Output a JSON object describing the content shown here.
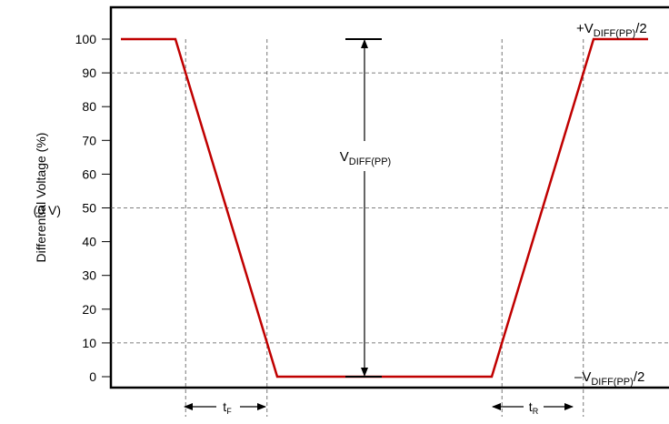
{
  "chart_data": {
    "type": "line",
    "title": "",
    "xlabel": "",
    "ylabel": "Differential Voltage (%)",
    "ylim": [
      0,
      100
    ],
    "yticks": [
      0,
      10,
      20,
      30,
      40,
      50,
      60,
      70,
      80,
      90,
      100
    ],
    "y_gridlines": [
      10,
      50,
      90
    ],
    "y_mid_label": "(0 V)",
    "series": [
      {
        "color": "#c00000",
        "points": [
          [
            0.0,
            100
          ],
          [
            0.15,
            100
          ],
          [
            0.43,
            0
          ],
          [
            1.02,
            0
          ],
          [
            1.3,
            100
          ],
          [
            1.45,
            100
          ]
        ]
      }
    ],
    "annotations": {
      "vdiff": {
        "main": "V",
        "sub": "DIFF(PP)"
      },
      "top_right": {
        "prefix": "+V",
        "sub": "DIFF(PP)",
        "suffix": "/2"
      },
      "bottom_right": {
        "prefix": "–V",
        "sub": "DIFF(PP)",
        "suffix": "/2"
      },
      "tf": {
        "main": "t",
        "sub": "F"
      },
      "tr": {
        "main": "t",
        "sub": "R"
      }
    }
  }
}
